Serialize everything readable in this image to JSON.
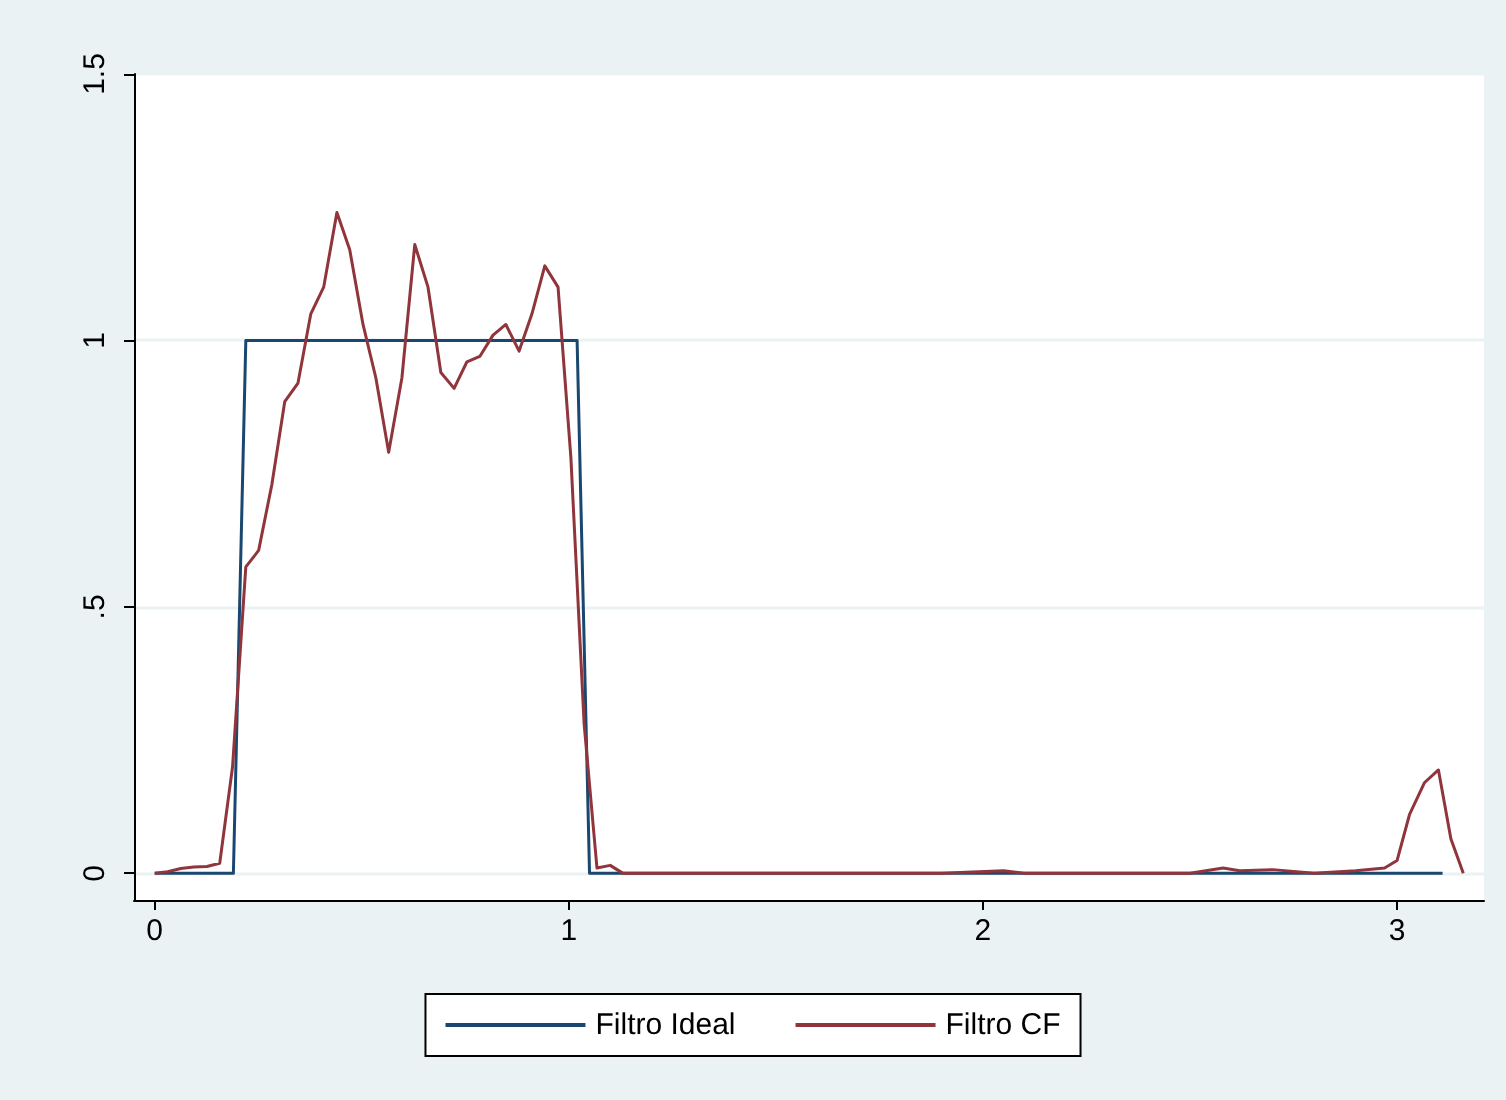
{
  "chart_data": {
    "type": "line",
    "xlim": [
      -0.05,
      3.21
    ],
    "ylim": [
      -0.05,
      1.5
    ],
    "xticks": [
      0,
      1,
      2,
      3
    ],
    "yticks": [
      0,
      {
        "value": 0.5,
        "label": ".5"
      },
      1,
      1.5
    ],
    "grid": "y",
    "legend": "bottom",
    "marker": "none",
    "line_style": "solid",
    "series": [
      {
        "name": "Filtro Ideal",
        "color": "#1a476f",
        "x": [
          0,
          0.19,
          0.22,
          1.02,
          1.05,
          3.11
        ],
        "values": [
          0,
          0,
          1,
          1,
          0,
          0
        ]
      },
      {
        "name": "Filtro CF",
        "color": "#90353b",
        "x": [
          0,
          0.031,
          0.063,
          0.094,
          0.126,
          0.157,
          0.188,
          0.22,
          0.251,
          0.283,
          0.314,
          0.346,
          0.377,
          0.408,
          0.44,
          0.471,
          0.503,
          0.534,
          0.565,
          0.597,
          0.628,
          0.66,
          0.691,
          0.723,
          0.754,
          0.785,
          0.817,
          0.848,
          0.88,
          0.911,
          0.942,
          0.974,
          1.005,
          1.037,
          1.068,
          1.1,
          1.131,
          1.3,
          1.5,
          1.7,
          1.9,
          2.05,
          2.1,
          2.3,
          2.5,
          2.58,
          2.62,
          2.7,
          2.8,
          2.9,
          2.97,
          3.0,
          3.03,
          3.066,
          3.1,
          3.13,
          3.16
        ],
        "values": [
          0,
          0.003,
          0.009,
          0.012,
          0.013,
          0.019,
          0.2,
          0.575,
          0.606,
          0.73,
          0.885,
          0.92,
          1.05,
          1.1,
          1.24,
          1.17,
          1.03,
          0.93,
          0.79,
          0.93,
          1.18,
          1.1,
          0.94,
          0.91,
          0.96,
          0.97,
          1.01,
          1.03,
          0.98,
          1.05,
          1.14,
          1.1,
          0.78,
          0.28,
          0.01,
          0.015,
          0,
          0,
          0,
          0,
          0,
          0.005,
          0,
          0,
          0,
          0.01,
          0.005,
          0.007,
          0,
          0.005,
          0.01,
          0.024,
          0.11,
          0.17,
          0.194,
          0.065,
          0
        ]
      }
    ]
  }
}
